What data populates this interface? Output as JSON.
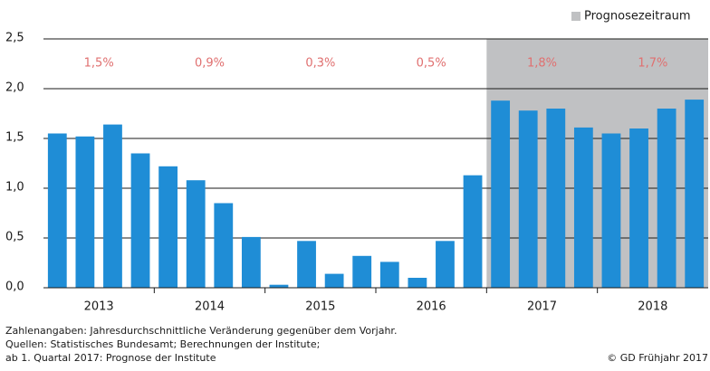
{
  "chart_data": {
    "type": "bar",
    "categories": [
      null,
      null,
      null,
      null,
      null,
      null,
      null,
      null,
      null,
      null,
      null,
      null,
      null,
      null,
      null,
      null,
      null,
      null,
      null,
      null,
      null,
      null,
      null,
      null
    ],
    "values": [
      1.55,
      1.52,
      1.64,
      1.35,
      1.22,
      1.08,
      0.85,
      0.51,
      0.03,
      0.47,
      0.14,
      0.32,
      0.26,
      0.1,
      0.47,
      1.13,
      1.88,
      1.78,
      1.8,
      1.61,
      1.55,
      1.6,
      1.8,
      1.89
    ],
    "color": "#1f8dd6",
    "groups": [
      "2013",
      "2014",
      "2015",
      "2016",
      "2017",
      "2018"
    ],
    "group_values": [
      1.5,
      0.9,
      0.3,
      0.5,
      1.8,
      1.7
    ],
    "group_value_labels": [
      "1,5%",
      "0,9%",
      "0,3%",
      "0,5%",
      "1,8%",
      "1,7%"
    ],
    "forecast": {
      "label": "Prognosezeitraum",
      "color": "#c0c1c3",
      "start_index": 16
    },
    "ylim": [
      0,
      2.5
    ],
    "yticks": [
      {
        "value": 0,
        "label": "0,0"
      },
      {
        "value": 0.5,
        "label": "0,5"
      },
      {
        "value": 1,
        "label": "1,0"
      },
      {
        "value": 1.5,
        "label": "1,5"
      },
      {
        "value": 2,
        "label": "2,0"
      },
      {
        "value": 2.5,
        "label": "2,5"
      }
    ],
    "grid": true,
    "notes": [
      "Zahlenangaben: Jahresdurchschnittliche Veränderung gegenüber dem Vorjahr.",
      "Quellen: Statistisches Bundesamt; Berechnungen der Institute;",
      "ab 1. Quartal 2017: Prognose der Institute"
    ],
    "credit": "© GD Frühjahr 2017"
  }
}
